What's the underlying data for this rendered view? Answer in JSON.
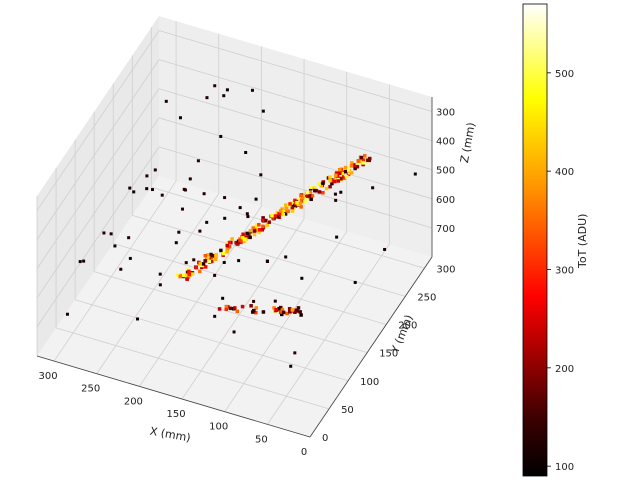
{
  "chart_data": {
    "type": "scatter",
    "projection": "3d",
    "x_label": "X (mm)",
    "y_label": "Y (mm)",
    "z_label": "Z (mm)",
    "x_ticks": [
      "300",
      "250",
      "200",
      "150",
      "100",
      "50",
      "0"
    ],
    "y_ticks": [
      "0",
      "50",
      "100",
      "150",
      "200",
      "250",
      "300"
    ],
    "z_ticks": [
      "300",
      "400",
      "500",
      "600",
      "700"
    ],
    "x_range": [
      0,
      320
    ],
    "y_range": [
      0,
      320
    ],
    "z_range": [
      250,
      800
    ],
    "grid": true,
    "colorbar": {
      "label": "ToT (ADU)",
      "ticks": [
        "100",
        "200",
        "300",
        "400",
        "500"
      ],
      "range": [
        90,
        570
      ],
      "colormap": "hot",
      "colors": [
        "#000000",
        "#e60000",
        "#ff8000",
        "#ffff00",
        "#ffffff"
      ]
    },
    "point_summary": {
      "main_track": {
        "from": [
          170,
          40,
          480
        ],
        "to": [
          40,
          250,
          350
        ],
        "tot_range": [
          120,
          520
        ]
      },
      "secondary_track": {
        "from": [
          150,
          110,
          700
        ],
        "to": [
          80,
          165,
          760
        ],
        "tot_range": [
          100,
          400
        ]
      },
      "scattered_noise_points": "sparse isolated hits, ToT about 100"
    }
  }
}
